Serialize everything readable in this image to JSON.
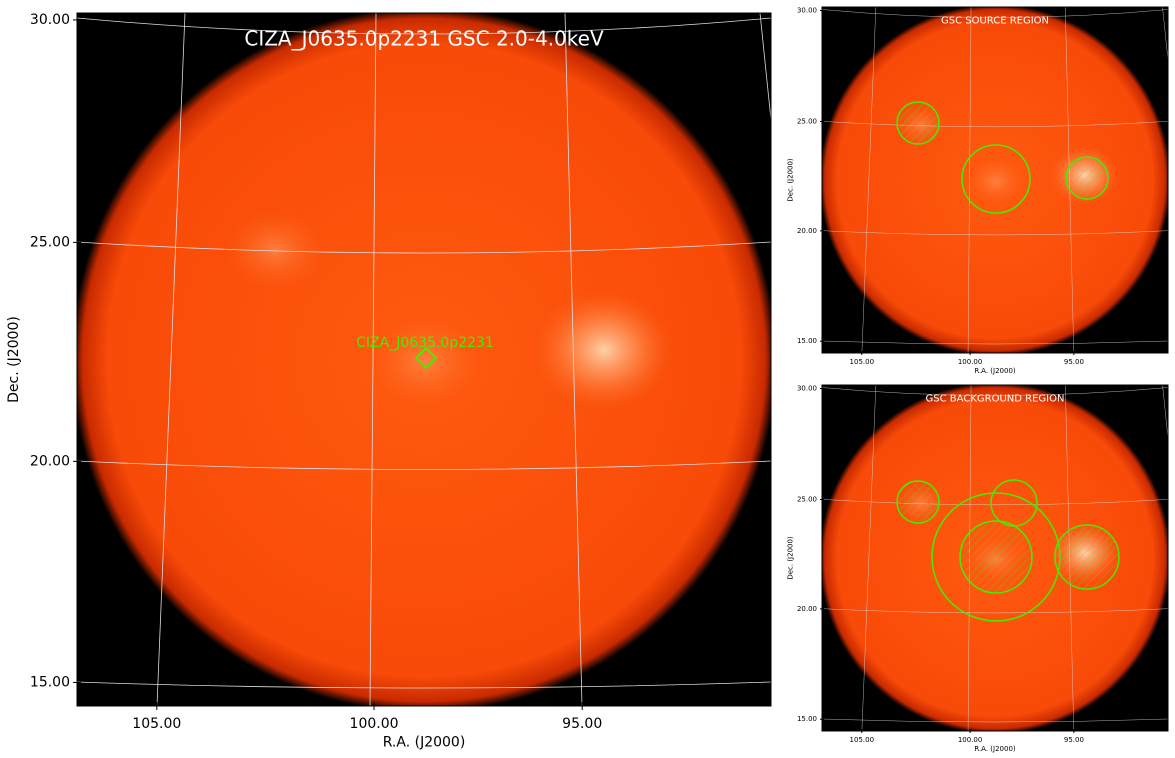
{
  "panels": [
    {
      "title": "CIZA_J0635.0p2231 GSC 2.0-4.0keV",
      "source_label": "CIZA_J0635.0p2231",
      "x_label": "R.A. (J2000)",
      "y_label": "Dec. (J2000)",
      "x_ticks": [
        "105.00",
        "100.00",
        "95.00"
      ],
      "y_ticks": [
        "30.00",
        "25.00",
        "20.00",
        "15.00"
      ]
    },
    {
      "title": "GSC SOURCE REGION",
      "x_label": "R.A. (J2000)",
      "y_label": "Dec. (J2000)",
      "x_ticks": [
        "105.00",
        "100.00",
        "95.00"
      ],
      "y_ticks": [
        "30.00",
        "25.00",
        "20.00",
        "15.00"
      ]
    },
    {
      "title": "GSC BACKGROUND REGION",
      "x_label": "R.A. (J2000)",
      "y_label": "Dec. (J2000)",
      "x_ticks": [
        "105.00",
        "100.00",
        "95.00"
      ],
      "y_ticks": [
        "30.00",
        "25.00",
        "20.00",
        "15.00"
      ]
    }
  ]
}
